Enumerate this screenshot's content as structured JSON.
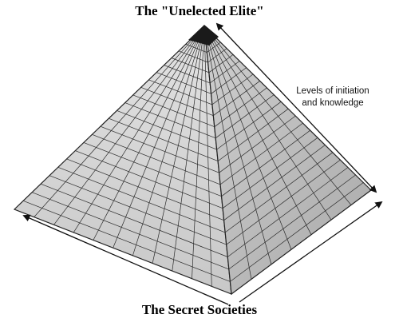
{
  "diagram": {
    "top_label": "The \"Unelected Elite\"",
    "bottom_label": "The Secret Societies",
    "side_label_lines": [
      "Levels of initiation",
      "and knowledge"
    ],
    "apex_color": "#1a1a1a",
    "left_face_color": "#d2d2d2",
    "right_face_color": "#bdbdbd",
    "grid_color": "#2a2a2a"
  }
}
